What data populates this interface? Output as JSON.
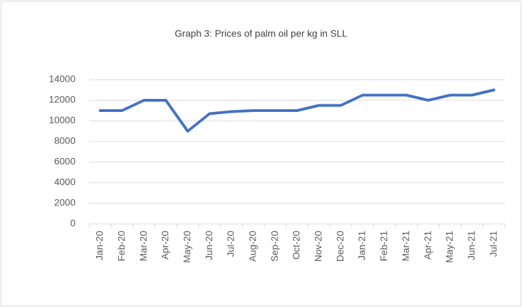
{
  "chart_data": {
    "type": "line",
    "title": "Graph 3: Prices of palm oil per kg in SLL",
    "categories": [
      "Jan-20",
      "Feb-20",
      "Mar-20",
      "Apr-20",
      "May-20",
      "Jun-20",
      "Jul-20",
      "Aug-20",
      "Sep-20",
      "Oct-20",
      "Nov-20",
      "Dec-20",
      "Jan-21",
      "Feb-21",
      "Mar-21",
      "Apr-21",
      "May-21",
      "Jun-21",
      "Jul-21"
    ],
    "values": [
      11000,
      11000,
      12000,
      12000,
      9000,
      10700,
      10900,
      11000,
      11000,
      11000,
      11500,
      11500,
      12500,
      12500,
      12500,
      12000,
      12500,
      12500,
      13000
    ],
    "color": "#4472c4",
    "ylim": [
      0,
      14000
    ],
    "yticks": [
      0,
      2000,
      4000,
      6000,
      8000,
      10000,
      12000,
      14000
    ],
    "grid": true
  }
}
